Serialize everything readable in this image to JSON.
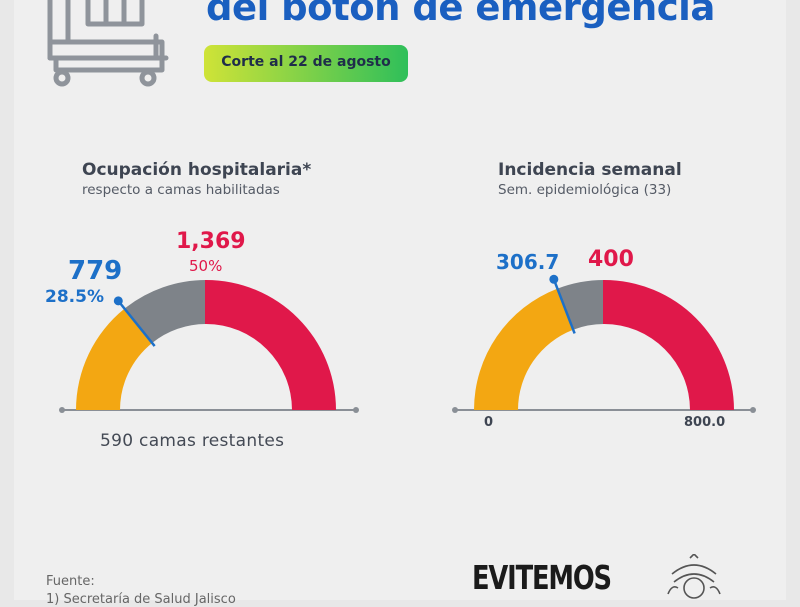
{
  "header": {
    "title": "del botón de emergencia",
    "badge": "Corte al 22 de agosto"
  },
  "colors": {
    "blue": "#1d70c8",
    "red": "#e0184a",
    "orange": "#f3a712",
    "gray": "#7e8389",
    "badge_gradient": [
      "#cfe337",
      "#2fbf5a"
    ]
  },
  "icons": [
    "hospital-bed-icon",
    "seal-icon"
  ],
  "chart_data": [
    {
      "type": "gauge",
      "title": "Ocupación hospitalaria*",
      "subtitle": "respecto a camas habilitadas",
      "value": 779,
      "value_label": "779",
      "value_pct": 28.5,
      "value_pct_label": "28.5%",
      "threshold": 1369,
      "threshold_label": "1,369",
      "threshold_pct": 50,
      "threshold_pct_label": "50%",
      "max": 2738,
      "bands": [
        {
          "from": 0,
          "to": 779,
          "color": "#f3a712"
        },
        {
          "from": 779,
          "to": 1369,
          "color": "#7e8389"
        },
        {
          "from": 1369,
          "to": 2738,
          "color": "#e0184a"
        }
      ],
      "footer": "590 camas restantes"
    },
    {
      "type": "gauge",
      "title": "Incidencia semanal",
      "subtitle": "Sem. epidemiológica (33)",
      "value": 306.7,
      "value_label": "306.7",
      "threshold": 400,
      "threshold_label": "400",
      "min": 0,
      "max": 800,
      "min_label": "0",
      "max_label": "800.0",
      "bands": [
        {
          "from": 0,
          "to": 306.7,
          "color": "#f3a712"
        },
        {
          "from": 306.7,
          "to": 400,
          "color": "#7e8389"
        },
        {
          "from": 400,
          "to": 800,
          "color": "#e0184a"
        }
      ]
    }
  ],
  "footer": {
    "source_label": "Fuente:",
    "source_line": "1) Secretaría de Salud Jalisco",
    "campaign": "EVITEMOS"
  }
}
